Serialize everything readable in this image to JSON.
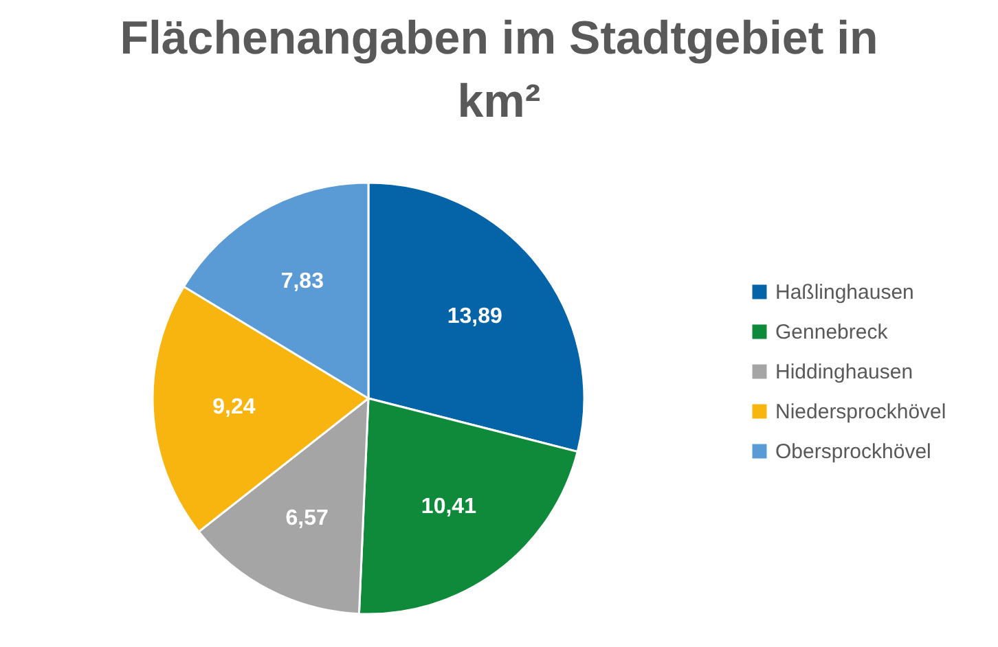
{
  "chart_data": {
    "type": "pie",
    "title": "Flächenangaben im Stadtgebiet in km²",
    "categories": [
      "Haßlinghausen",
      "Gennebreck",
      "Hiddinghausen",
      "Niedersprockhövel",
      "Obersprockhövel"
    ],
    "values": [
      13.89,
      10.41,
      6.57,
      9.24,
      7.83
    ],
    "colors": [
      "#0563a8",
      "#0e8a3a",
      "#a5a5a5",
      "#f8b50f",
      "#5b9bd5"
    ],
    "value_labels": [
      "13,89",
      "10,41",
      "6,57",
      "9,24",
      "7,83"
    ],
    "legend": "right"
  }
}
